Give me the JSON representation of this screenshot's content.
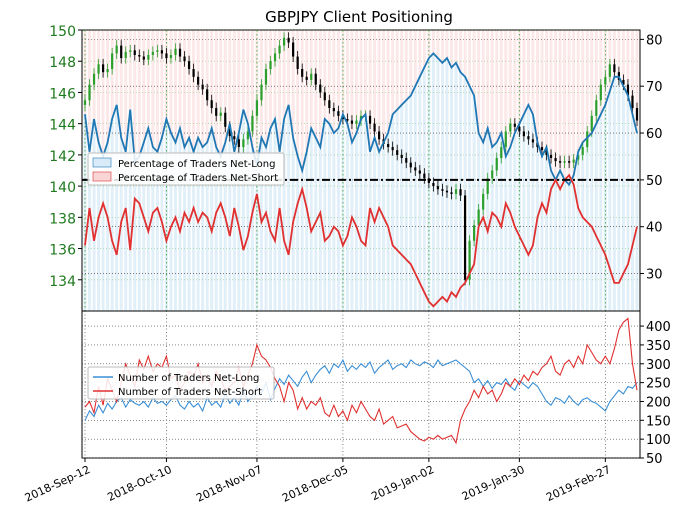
{
  "chart_data": [
    {
      "type": "candlestick+line",
      "title": "GBPJPY Client Positioning",
      "x_tick_labels": [
        "2018-Sep-12",
        "2018-Oct-10",
        "2018-Nov-07",
        "2018-Dec-05",
        "2019-Jan-02",
        "2019-Jan-30",
        "2019-Feb-27"
      ],
      "left_axis": {
        "ylim": [
          132,
          150
        ],
        "ticks": [
          134,
          136,
          138,
          140,
          142,
          144,
          146,
          148,
          150
        ],
        "color": "#1f7a1f"
      },
      "right_axis": {
        "ylim": [
          22,
          82
        ],
        "ticks": [
          30,
          40,
          50,
          60,
          70,
          80
        ]
      },
      "price_close": [
        145.5,
        146.5,
        147.2,
        147.8,
        147.3,
        147.5,
        148.5,
        149.0,
        148.2,
        148.6,
        148.7,
        148.4,
        148.3,
        148.1,
        148.4,
        148.6,
        148.7,
        148.5,
        148.2,
        148.4,
        148.8,
        148.3,
        148.0,
        147.5,
        147.0,
        146.5,
        146.2,
        145.5,
        145.0,
        144.5,
        144.7,
        143.8,
        143.2,
        143.0,
        142.5,
        143.0,
        143.5,
        144.5,
        145.5,
        146.5,
        147.5,
        148.0,
        148.5,
        149.0,
        149.5,
        149.2,
        148.3,
        147.5,
        147.0,
        146.8,
        147.2,
        146.5,
        146.0,
        145.5,
        145.0,
        144.8,
        144.5,
        144.3,
        144.2,
        144.0,
        144.2,
        144.5,
        144.5,
        144.0,
        143.5,
        143.0,
        142.7,
        142.5,
        142.3,
        142.0,
        141.8,
        141.5,
        141.2,
        141.0,
        140.8,
        140.5,
        140.2,
        140.0,
        139.8,
        139.7,
        139.6,
        139.5,
        139.8,
        139.4,
        134.0,
        136.5,
        137.5,
        138.5,
        139.5,
        140.5,
        141.0,
        141.8,
        142.5,
        143.5,
        144.0,
        143.8,
        143.5,
        143.2,
        143.0,
        142.8,
        142.5,
        142.3,
        142.0,
        141.8,
        141.6,
        141.5,
        141.6,
        141.5,
        141.7,
        142.0,
        142.5,
        143.5,
        144.5,
        145.5,
        146.5,
        147.0,
        147.8,
        147.3,
        146.8,
        146.5,
        145.8,
        145.0,
        144.2
      ],
      "series": [
        {
          "name": "Percentage of Traders Net-Long",
          "color": "#1f77b4",
          "fill": "#d9ebf8",
          "values": [
            64,
            56,
            63,
            58,
            55,
            58,
            63,
            66,
            59,
            56,
            65,
            54,
            55,
            58,
            61,
            57,
            56,
            59,
            63,
            60,
            58,
            61,
            57,
            59,
            56,
            59,
            57,
            58,
            61,
            57,
            55,
            58,
            62,
            56,
            60,
            65,
            62,
            57,
            53,
            59,
            57,
            61,
            63,
            56,
            63,
            66,
            59,
            55,
            52,
            56,
            61,
            59,
            57,
            63,
            62,
            60,
            61,
            64,
            62,
            58,
            60,
            63,
            64,
            56,
            59,
            56,
            58,
            60,
            64,
            65,
            66,
            67,
            68,
            70,
            72,
            74,
            76,
            77,
            76,
            75,
            76,
            74,
            75,
            73,
            72,
            70,
            68,
            60,
            58,
            61,
            57,
            58,
            60,
            55,
            57,
            60,
            62,
            64,
            66,
            64,
            58,
            55,
            57,
            52,
            50,
            52,
            50,
            49,
            51,
            56,
            58,
            59,
            60,
            62,
            64,
            66,
            69,
            72,
            72,
            70,
            68,
            64,
            60
          ]
        },
        {
          "name": "Percentage of Traders Net-Short",
          "color": "#e03030",
          "fill": "#fad5d5",
          "values": [
            36,
            44,
            37,
            42,
            45,
            42,
            37,
            34,
            41,
            44,
            35,
            46,
            45,
            42,
            39,
            43,
            44,
            41,
            37,
            40,
            42,
            39,
            43,
            41,
            44,
            41,
            43,
            42,
            39,
            43,
            45,
            42,
            38,
            44,
            40,
            35,
            38,
            43,
            47,
            41,
            43,
            39,
            37,
            44,
            37,
            34,
            41,
            45,
            48,
            44,
            39,
            41,
            43,
            37,
            38,
            40,
            39,
            36,
            38,
            42,
            40,
            37,
            36,
            44,
            41,
            44,
            42,
            40,
            36,
            35,
            34,
            33,
            32,
            30,
            28,
            26,
            24,
            23,
            24,
            25,
            24,
            26,
            25,
            27,
            28,
            30,
            32,
            40,
            42,
            39,
            43,
            42,
            40,
            45,
            43,
            40,
            38,
            36,
            34,
            36,
            42,
            45,
            43,
            48,
            50,
            48,
            50,
            51,
            49,
            44,
            42,
            41,
            40,
            38,
            36,
            34,
            31,
            28,
            28,
            30,
            32,
            36,
            40
          ]
        }
      ],
      "reference_line": {
        "value": 50,
        "style": "dash-dot",
        "color": "#000000"
      },
      "legend_placement": "left"
    },
    {
      "type": "line",
      "y_ticks": [
        50,
        100,
        150,
        200,
        250,
        300,
        350,
        400
      ],
      "ylim": [
        50,
        440
      ],
      "series": [
        {
          "name": "Number of Traders Net-Long",
          "color": "#3a8fd6",
          "values": [
            150,
            175,
            160,
            190,
            170,
            195,
            180,
            200,
            210,
            185,
            205,
            195,
            190,
            200,
            185,
            210,
            195,
            200,
            190,
            205,
            215,
            190,
            180,
            200,
            185,
            195,
            175,
            210,
            190,
            200,
            185,
            220,
            195,
            210,
            190,
            230,
            200,
            215,
            240,
            220,
            250,
            205,
            235,
            260,
            245,
            270,
            255,
            240,
            265,
            280,
            250,
            270,
            285,
            295,
            275,
            300,
            290,
            310,
            280,
            295,
            285,
            300,
            290,
            305,
            275,
            290,
            300,
            310,
            285,
            295,
            300,
            290,
            310,
            300,
            295,
            305,
            300,
            290,
            310,
            295,
            300,
            305,
            310,
            300,
            290,
            280,
            250,
            260,
            240,
            255,
            235,
            250,
            245,
            260,
            240,
            230,
            255,
            245,
            235,
            250,
            240,
            220,
            200,
            190,
            210,
            205,
            195,
            215,
            200,
            190,
            205,
            210,
            200,
            195,
            185,
            175,
            200,
            215,
            230,
            220,
            240,
            235,
            250
          ]
        },
        {
          "name": "Number of Traders Net-Short",
          "color": "#e03030",
          "values": [
            185,
            200,
            170,
            240,
            190,
            260,
            230,
            200,
            250,
            300,
            270,
            240,
            310,
            285,
            320,
            280,
            300,
            290,
            320,
            260,
            270,
            230,
            250,
            280,
            265,
            300,
            250,
            270,
            240,
            280,
            260,
            230,
            240,
            250,
            290,
            240,
            270,
            300,
            350,
            320,
            310,
            290,
            260,
            240,
            200,
            250,
            230,
            180,
            210,
            180,
            200,
            190,
            210,
            170,
            160,
            190,
            160,
            175,
            150,
            190,
            170,
            200,
            180,
            160,
            150,
            180,
            140,
            150,
            160,
            130,
            135,
            140,
            120,
            110,
            100,
            95,
            105,
            100,
            110,
            100,
            105,
            110,
            90,
            150,
            180,
            200,
            230,
            210,
            240,
            220,
            230,
            200,
            220,
            250,
            240,
            260,
            245,
            270,
            255,
            280,
            270,
            290,
            300,
            320,
            280,
            270,
            300,
            310,
            290,
            320,
            300,
            350,
            330,
            310,
            300,
            320,
            300,
            340,
            390,
            410,
            420,
            300,
            230
          ]
        }
      ],
      "legend_placement": "left"
    }
  ]
}
